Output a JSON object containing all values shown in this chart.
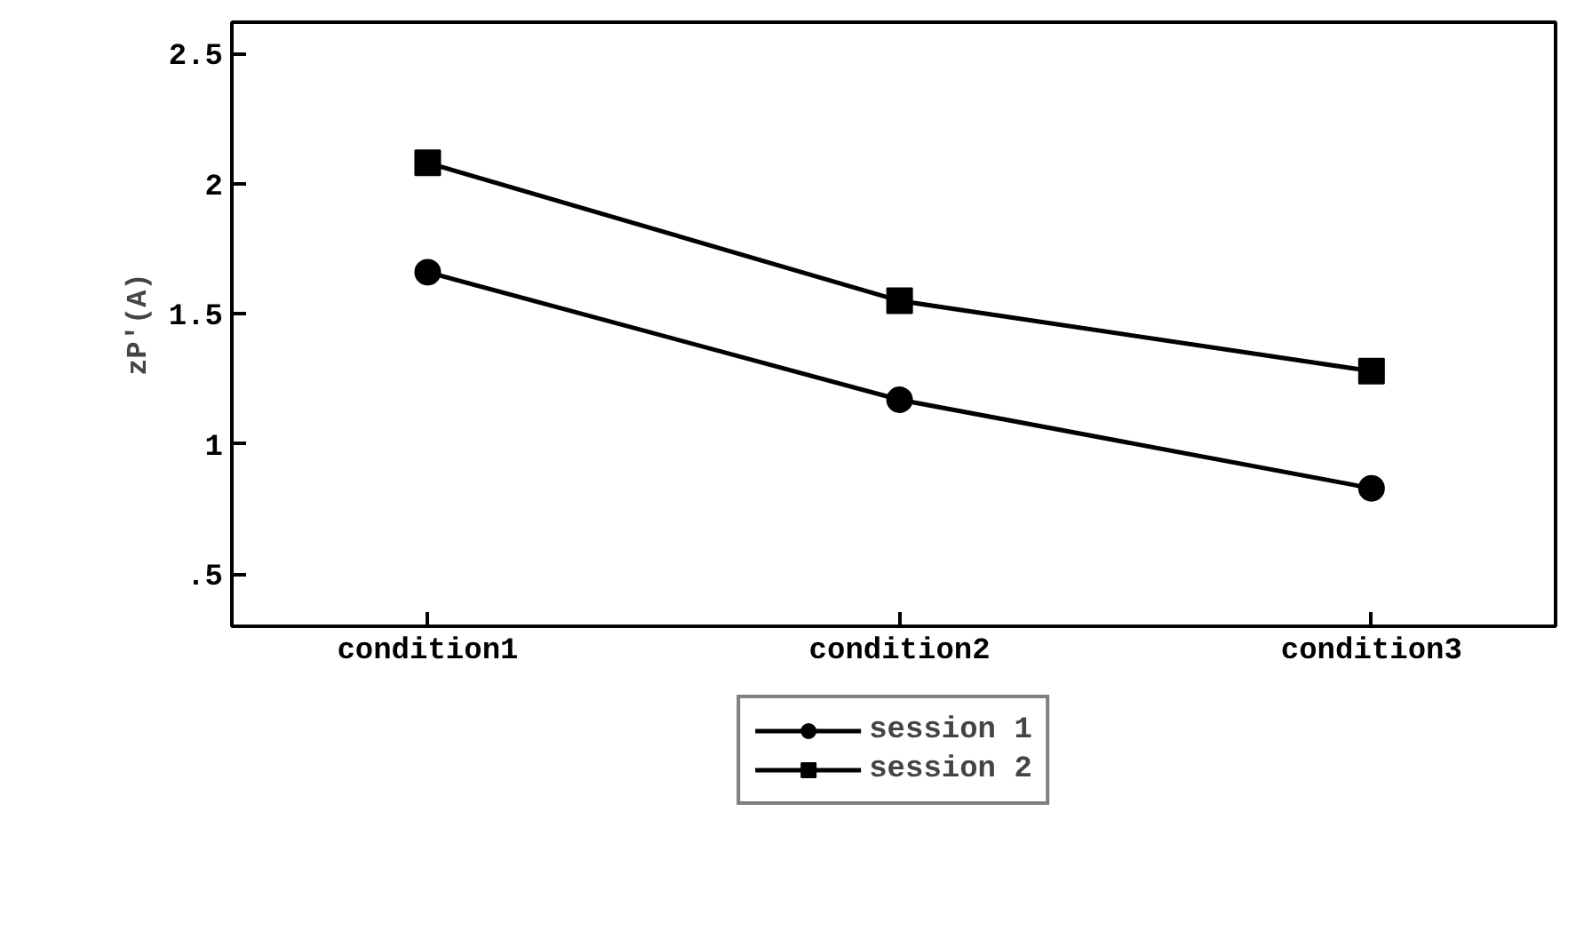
{
  "chart_data": {
    "type": "line",
    "ylabel": "zP'(A)",
    "categories": [
      "condition1",
      "condition2",
      "condition3"
    ],
    "series": [
      {
        "name": "session 1",
        "color": "#000000",
        "marker": "circle",
        "values": [
          1.66,
          1.17,
          0.83
        ]
      },
      {
        "name": "session 2",
        "color": "#000000",
        "marker": "square",
        "values": [
          2.08,
          1.55,
          1.28
        ]
      }
    ],
    "ylim": [
      0.3,
      2.62
    ],
    "yticks": [
      {
        "value": 0.5,
        "label": ".5"
      },
      1,
      1.5,
      2,
      2.5
    ],
    "grid": false,
    "legend": "bottom",
    "line_style": "solid"
  }
}
